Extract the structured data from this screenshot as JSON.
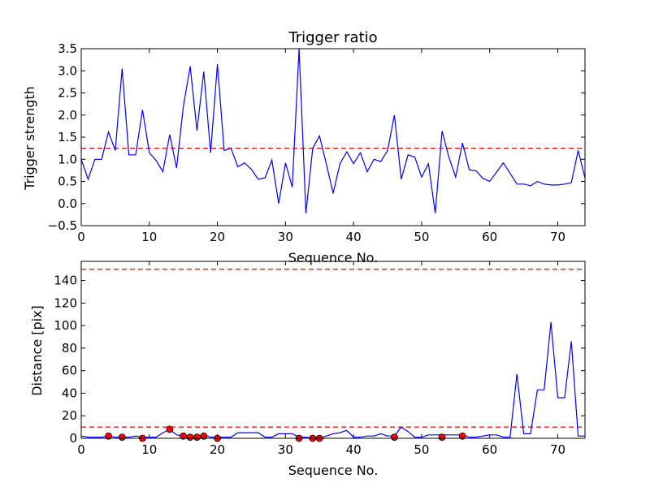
{
  "chart_data": [
    {
      "type": "line",
      "title": "Trigger ratio",
      "xlabel": "Sequence No.",
      "ylabel": "Trigger strength",
      "xlim": [
        0,
        74
      ],
      "ylim": [
        -0.5,
        3.5
      ],
      "xticks": [
        0,
        10,
        20,
        30,
        40,
        50,
        60,
        70
      ],
      "xtick_labels": [
        "0",
        "10",
        "20",
        "30",
        "40",
        "50",
        "60",
        "70"
      ],
      "yticks": [
        -0.5,
        0.0,
        0.5,
        1.0,
        1.5,
        2.0,
        2.5,
        3.0,
        3.5
      ],
      "ytick_labels": [
        "−0.5",
        "0.0",
        "0.5",
        "1.0",
        "1.5",
        "2.0",
        "2.5",
        "3.0",
        "3.5"
      ],
      "line_color": "#0000ff",
      "threshold": 1.25,
      "threshold_color": "#ff0000",
      "series": [
        {
          "x": [
            0,
            1,
            2,
            3,
            4,
            5,
            6,
            7,
            8,
            9,
            10,
            11,
            12,
            13,
            14,
            15,
            16,
            17,
            18,
            19,
            20,
            21,
            22,
            23,
            24,
            25,
            26,
            27,
            28,
            29,
            30,
            31,
            32,
            33,
            34,
            35,
            36,
            37,
            38,
            39,
            40,
            41,
            42,
            43,
            44,
            45,
            46,
            47,
            48,
            49,
            50,
            51,
            52,
            53,
            54,
            55,
            56,
            57,
            58,
            59,
            60,
            62,
            64,
            65,
            66,
            67,
            68,
            69,
            70,
            71,
            72,
            73,
            74
          ],
          "y": [
            1.0,
            0.55,
            1.0,
            1.0,
            1.62,
            1.2,
            3.05,
            1.1,
            1.1,
            2.12,
            1.15,
            0.97,
            0.72,
            1.56,
            0.8,
            2.2,
            3.1,
            1.65,
            2.98,
            1.15,
            3.15,
            1.2,
            1.25,
            0.83,
            0.92,
            0.77,
            0.55,
            0.58,
            0.98,
            0.0,
            0.92,
            0.37,
            3.5,
            -0.22,
            1.25,
            1.53,
            0.9,
            0.23,
            0.9,
            1.17,
            0.9,
            1.15,
            0.72,
            1.0,
            0.95,
            1.2,
            2.0,
            0.55,
            1.1,
            1.05,
            0.6,
            0.9,
            -0.22,
            1.64,
            1.05,
            0.6,
            1.37,
            0.76,
            0.74,
            0.57,
            0.5,
            0.92,
            0.44,
            0.44,
            0.4,
            0.5,
            0.44,
            0.42,
            0.42,
            0.44,
            0.47,
            1.2,
            0.58
          ]
        }
      ]
    },
    {
      "type": "line",
      "title": "",
      "xlabel": "Sequence No.",
      "ylabel": "Distance [pix]",
      "xlim": [
        0,
        74
      ],
      "ylim": [
        0,
        157
      ],
      "xticks": [
        0,
        10,
        20,
        30,
        40,
        50,
        60,
        70
      ],
      "xtick_labels": [
        "0",
        "10",
        "20",
        "30",
        "40",
        "50",
        "60",
        "70"
      ],
      "yticks": [
        0,
        20,
        40,
        60,
        80,
        100,
        120,
        140
      ],
      "ytick_labels": [
        "0",
        "20",
        "40",
        "60",
        "80",
        "100",
        "120",
        "140"
      ],
      "line_color": "#0000ff",
      "thresholds": [
        150,
        10
      ],
      "threshold_color": "#ff0000",
      "marker_color": "#ff0000",
      "series": [
        {
          "x": [
            0,
            1,
            2,
            3,
            4,
            5,
            6,
            7,
            8,
            9,
            10,
            11,
            12,
            13,
            14,
            15,
            16,
            17,
            18,
            19,
            20,
            21,
            22,
            23,
            24,
            25,
            26,
            27,
            28,
            29,
            30,
            31,
            32,
            33,
            34,
            35,
            36,
            37,
            38,
            39,
            40,
            41,
            42,
            43,
            44,
            45,
            46,
            47,
            48,
            49,
            50,
            51,
            52,
            53,
            54,
            55,
            56,
            57,
            58,
            59,
            60,
            61,
            62,
            63,
            64,
            65,
            66,
            67,
            68,
            69,
            70,
            71,
            72,
            73,
            74
          ],
          "y": [
            2,
            1,
            1,
            1,
            2,
            1,
            1,
            1,
            2,
            1,
            1,
            1,
            5,
            8,
            3,
            2,
            1,
            1,
            3,
            1,
            1,
            1,
            1,
            5,
            5,
            5,
            5,
            1,
            1,
            4,
            4,
            4,
            1,
            1,
            0,
            0,
            2,
            4,
            5,
            7,
            1,
            1,
            2,
            2,
            4,
            2,
            2,
            10,
            6,
            1,
            1,
            3,
            3,
            3,
            3,
            3,
            3,
            1,
            1,
            2,
            3,
            3,
            1,
            1,
            57,
            4,
            4,
            43,
            43,
            103,
            36,
            36,
            86,
            2,
            2
          ]
        }
      ],
      "markers": {
        "x": [
          4,
          6,
          9,
          13,
          15,
          16,
          17,
          18,
          20,
          32,
          34,
          35,
          46,
          53,
          56
        ],
        "y": [
          2,
          1,
          0,
          8,
          2,
          1,
          1,
          2,
          0,
          0,
          0,
          0,
          1,
          1,
          2
        ]
      }
    }
  ]
}
